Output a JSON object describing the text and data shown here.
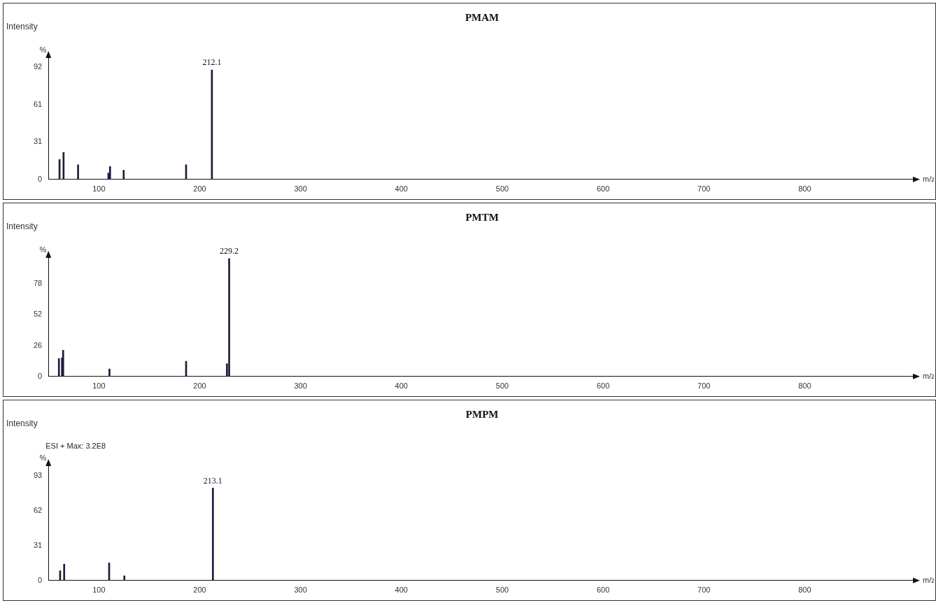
{
  "chart_data": [
    {
      "type": "bar",
      "title": "PMAM",
      "ylabel": "Intensity",
      "xlabel": "m/z",
      "annotations": [
        "%",
        {
          "text": "212.1",
          "x": 212.1,
          "y": 89.9
        }
      ],
      "x": [
        61.0,
        65.0,
        79.4,
        109.5,
        111.1,
        124.6,
        186.5,
        212.1
      ],
      "values": [
        16.3,
        22.2,
        12.0,
        5.3,
        10.6,
        7.6,
        12.0,
        89.9
      ],
      "color": "#1c1c3c",
      "xlim": [
        50,
        910
      ],
      "xticks": [
        100,
        200,
        300,
        400,
        500,
        600,
        700,
        800
      ],
      "ylim": [
        0,
        102
      ],
      "yticks": [
        0,
        31,
        61,
        92
      ],
      "grid": false,
      "legend": false
    },
    {
      "type": "bar",
      "title": "PMTM",
      "ylabel": "Intensity",
      "xlabel": "m/z",
      "annotations": [
        "%",
        {
          "text": "229.2",
          "x": 229.2,
          "y": 99.0
        }
      ],
      "x": [
        60.4,
        63.5,
        64.6,
        110.5,
        186.5,
        227.0,
        229.2
      ],
      "values": [
        15.1,
        15.7,
        22.0,
        6.3,
        12.8,
        10.7,
        99.0
      ],
      "color": "#1c1c3c",
      "xlim": [
        50,
        910
      ],
      "xticks": [
        100,
        200,
        300,
        400,
        500,
        600,
        700,
        800
      ],
      "ylim": [
        0,
        102
      ],
      "yticks": [
        0,
        26,
        52,
        78
      ],
      "grid": false,
      "legend": false
    },
    {
      "type": "bar",
      "title": "PMPM",
      "ylabel": "Intensity",
      "xlabel": "m/z",
      "annotations": [
        "ESI + Max: 3.2E8",
        "%",
        {
          "text": "213.1",
          "x": 213.1,
          "y": 82.0
        }
      ],
      "x": [
        61.6,
        65.6,
        110.2,
        125.3,
        213.1
      ],
      "values": [
        8.7,
        14.5,
        15.6,
        4.1,
        82.0
      ],
      "color": "#1c1c3c",
      "xlim": [
        50,
        910
      ],
      "xticks": [
        100,
        200,
        300,
        400,
        500,
        600,
        700,
        800
      ],
      "ylim": [
        0,
        104
      ],
      "yticks": [
        0,
        31,
        62,
        93
      ],
      "grid": false,
      "legend": false
    }
  ]
}
